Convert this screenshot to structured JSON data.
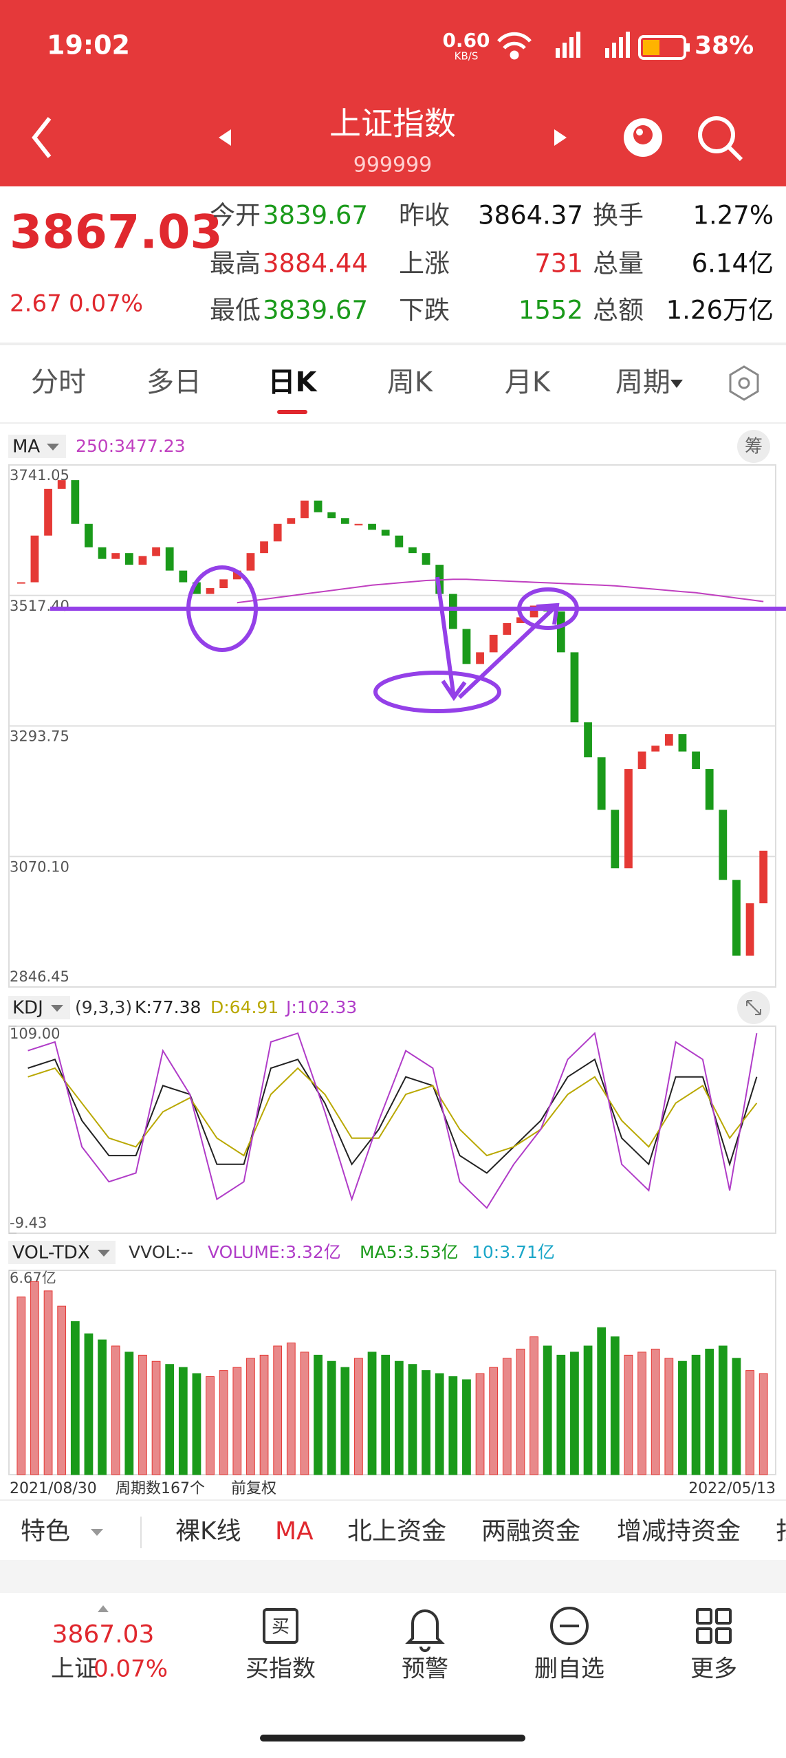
{
  "status_bar": {
    "time": "19:02",
    "net_speed": "0.60",
    "net_unit": "KB/S",
    "battery": "38%"
  },
  "header": {
    "title": "上证指数",
    "code": "999999"
  },
  "quote": {
    "price": "3867.03",
    "change": "2.67",
    "pct": "0.07%",
    "rows": [
      [
        {
          "label": "今开",
          "value": "3839.67",
          "color": "#1a9a1a"
        },
        {
          "label": "昨收",
          "value": "3864.37",
          "color": "#111"
        },
        {
          "label": "换手",
          "value": "1.27%",
          "color": "#111"
        }
      ],
      [
        {
          "label": "最高",
          "value": "3884.44",
          "color": "#e0282e"
        },
        {
          "label": "上涨",
          "value": "731",
          "color": "#e0282e"
        },
        {
          "label": "总量",
          "value": "6.14亿",
          "color": "#111"
        }
      ],
      [
        {
          "label": "最低",
          "value": "3839.67",
          "color": "#1a9a1a"
        },
        {
          "label": "下跌",
          "value": "1552",
          "color": "#1a9a1a"
        },
        {
          "label": "总额",
          "value": "1.26万亿",
          "color": "#111"
        }
      ]
    ]
  },
  "tabs": [
    "分时",
    "多日",
    "日K",
    "周K",
    "月K",
    "周期"
  ],
  "selected_tab": 2,
  "chips_label": "筹",
  "chart_data": [
    {
      "type": "candlestick",
      "legend_label": "MA",
      "ma_label": "250:3477.23",
      "values": [
        3540,
        3620,
        3700,
        3715,
        3640,
        3600,
        3580,
        3590,
        3570,
        3585,
        3600,
        3560,
        3540,
        3520,
        3530,
        3545,
        3560,
        3590,
        3610,
        3640,
        3650,
        3680,
        3660,
        3650,
        3640,
        3640,
        3630,
        3620,
        3600,
        3590,
        3570,
        3520,
        3460,
        3400,
        3420,
        3450,
        3470,
        3480,
        3500,
        3490,
        3420,
        3300,
        3240,
        3150,
        3050,
        3220,
        3250,
        3260,
        3280,
        3250,
        3220,
        3150,
        3030,
        2900,
        2990,
        3080
      ],
      "ma250": [
        null,
        null,
        null,
        null,
        null,
        null,
        null,
        null,
        null,
        null,
        null,
        null,
        null,
        null,
        null,
        null,
        3505,
        3508,
        3511,
        3514,
        3517,
        3520,
        3523,
        3526,
        3529,
        3532,
        3535,
        3537,
        3539,
        3541,
        3543,
        3544,
        3545,
        3545,
        3544,
        3543,
        3542,
        3541,
        3540,
        3539,
        3538,
        3537,
        3536,
        3535,
        3534,
        3532,
        3530,
        3528,
        3526,
        3524,
        3522,
        3519,
        3516,
        3513,
        3510,
        3507
      ],
      "up_color": "#e53935",
      "down_color": "#1a9a1a",
      "ma_color": "#c040c0",
      "ylim": [
        2846.45,
        3741.05
      ],
      "yticks": [
        3741.05,
        {
          "value": 3517.4,
          "label": "3517.40"
        },
        3293.75,
        {
          "value": 3070.1,
          "label": "3070.10"
        },
        2846.45
      ],
      "grid": true
    },
    {
      "type": "line",
      "legend_label": "KDJ",
      "params": "(9,3,3)",
      "series": [
        {
          "label": "K:77.38",
          "color": "#222222",
          "values": [
            85,
            90,
            55,
            35,
            35,
            75,
            70,
            30,
            30,
            85,
            90,
            65,
            30,
            50,
            80,
            75,
            35,
            25,
            40,
            55,
            80,
            90,
            45,
            30,
            80,
            80,
            30,
            80
          ]
        },
        {
          "label": "D:64.91",
          "color": "#b9a800",
          "values": [
            80,
            85,
            65,
            45,
            40,
            60,
            68,
            45,
            35,
            70,
            85,
            70,
            45,
            45,
            70,
            75,
            50,
            35,
            40,
            50,
            70,
            80,
            55,
            40,
            65,
            75,
            45,
            65
          ]
        },
        {
          "label": "J:102.33",
          "color": "#b03cc8",
          "values": [
            95,
            100,
            40,
            20,
            25,
            95,
            70,
            10,
            20,
            100,
            105,
            60,
            10,
            55,
            95,
            85,
            20,
            5,
            30,
            50,
            90,
            105,
            30,
            15,
            100,
            90,
            15,
            105
          ]
        }
      ],
      "ylim": [
        -9.43,
        109
      ],
      "yticks": [
        {
          "value": 109,
          "label": "109.00"
        },
        -9.43
      ]
    },
    {
      "type": "bar",
      "legend_label": "VOL-TDX",
      "readouts": [
        {
          "text": "VVOL:--",
          "color": "#333333"
        },
        {
          "text": "VOLUME:3.32亿",
          "color": "#b03cc8"
        },
        {
          "text": "MA5:3.53亿",
          "color": "#1a9a1a"
        },
        {
          "text": "10:3.71亿",
          "color": "#1aa6c8"
        }
      ],
      "values": [
        5.8,
        6.3,
        6.0,
        5.5,
        5.0,
        4.6,
        4.4,
        4.2,
        4.0,
        3.9,
        3.7,
        3.6,
        3.5,
        3.3,
        3.2,
        3.4,
        3.5,
        3.8,
        3.9,
        4.2,
        4.3,
        4.0,
        3.9,
        3.7,
        3.5,
        3.8,
        4.0,
        3.9,
        3.7,
        3.6,
        3.4,
        3.3,
        3.2,
        3.1,
        3.3,
        3.5,
        3.8,
        4.1,
        4.5,
        4.2,
        3.9,
        4.0,
        4.2,
        4.8,
        4.5,
        3.9,
        4.0,
        4.1,
        3.8,
        3.7,
        3.9,
        4.1,
        4.2,
        3.8,
        3.4,
        3.3
      ],
      "ylim": [
        0,
        6.67
      ],
      "yticks": [
        {
          "value": 6.67,
          "label": "6.67亿"
        }
      ]
    }
  ],
  "footer": {
    "start": "2021/08/30",
    "count": "周期数167个",
    "adjust": "前复权",
    "end": "2022/05/13"
  },
  "indicators": [
    "特色",
    "裸K线",
    "MA",
    "北上资金",
    "两融资金",
    "增减持资金",
    "扫"
  ],
  "selected_indicator": 2,
  "nav": {
    "price": "3867.03",
    "name": "上证",
    "pct": "0.07%",
    "items": [
      "买指数",
      "预警",
      "删自选",
      "更多"
    ]
  }
}
